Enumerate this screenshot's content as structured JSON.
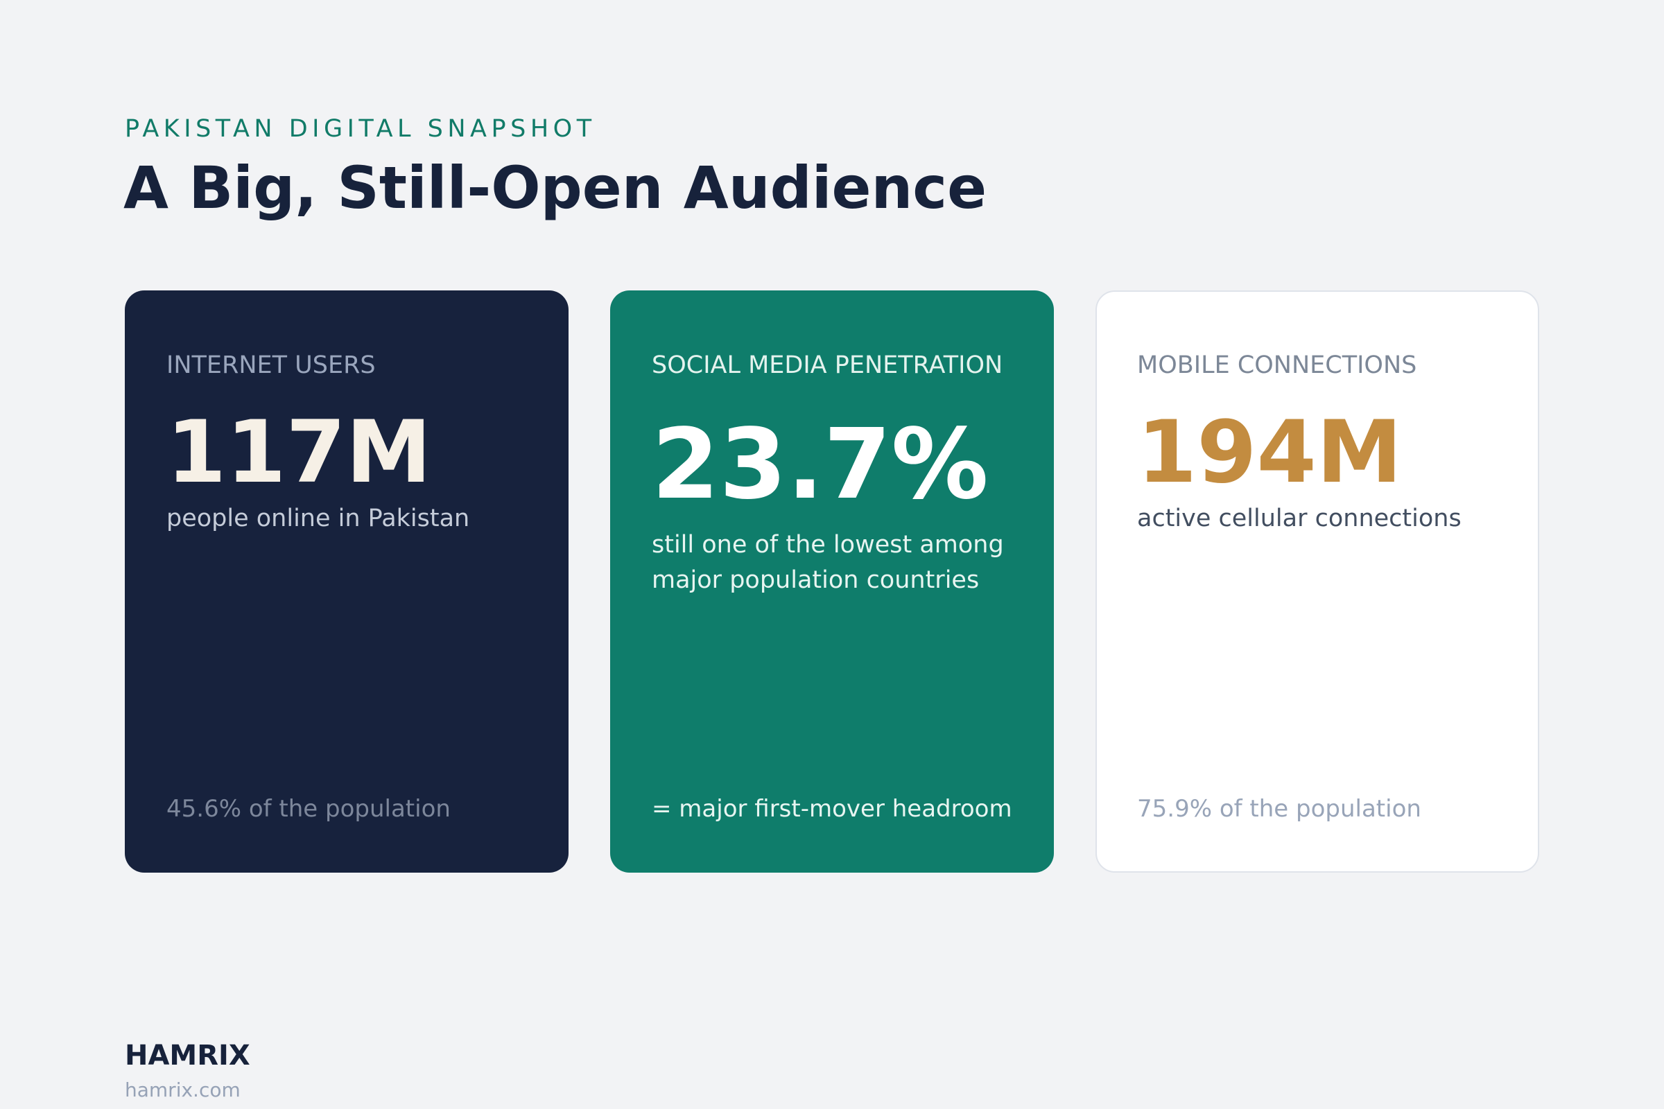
{
  "header": {
    "eyebrow": "PAKISTAN DIGITAL SNAPSHOT",
    "title": "A Big, Still-Open Audience"
  },
  "cards": [
    {
      "label": "INTERNET USERS",
      "value": "117M",
      "description": "people online in Pakistan",
      "footnote": "45.6% of the population",
      "background_color": "#17223d",
      "value_color": "#f6f0e6"
    },
    {
      "label": "SOCIAL MEDIA PENETRATION",
      "value": "23.7%",
      "description": "still one of the lowest among major population countries",
      "footnote": "= major first-mover headroom",
      "background_color": "#0f7d6b",
      "value_color": "#ffffff"
    },
    {
      "label": "MOBILE CONNECTIONS",
      "value": "194M",
      "description": "active cellular connections",
      "footnote": "75.9% of the population",
      "background_color": "#ffffff",
      "value_color": "#c38c40"
    }
  ],
  "footer": {
    "brand": "HAMRIX",
    "url": "hamrix.com"
  },
  "colors": {
    "page_background": "#f2f3f5",
    "accent_teal": "#117b68",
    "navy": "#17223b",
    "gold": "#c38c40"
  }
}
